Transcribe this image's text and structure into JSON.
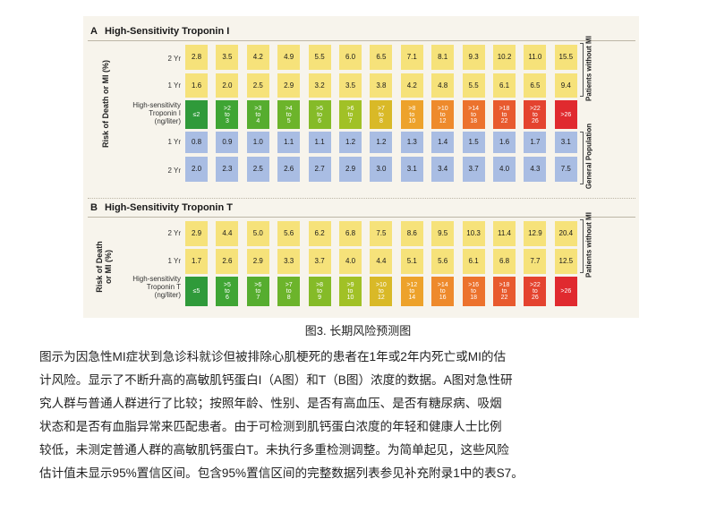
{
  "panel_a": {
    "letter": "A",
    "title": "High-Sensitivity Troponin I",
    "y_axis_label": "Risk of Death or MI (%)",
    "patients_label": "Patients without MI",
    "population_label": "General Population",
    "row_labels": {
      "yr2_top": "2 Yr",
      "yr1_top": "1 Yr",
      "troponin": [
        "High-sensitivity",
        "Troponin I",
        "(ng/liter)"
      ],
      "yr1_bottom": "1 Yr",
      "yr2_bottom": "2 Yr"
    },
    "patients_2yr": [
      "2.8",
      "3.5",
      "4.2",
      "4.9",
      "5.5",
      "6.0",
      "6.5",
      "7.1",
      "8.1",
      "9.3",
      "10.2",
      "11.0",
      "15.5"
    ],
    "patients_1yr": [
      "1.6",
      "2.0",
      "2.5",
      "2.9",
      "3.2",
      "3.5",
      "3.8",
      "4.2",
      "4.8",
      "5.5",
      "6.1",
      "6.5",
      "9.4"
    ],
    "troponin_levels": [
      [
        "≤2"
      ],
      [
        ">2",
        "to",
        "3"
      ],
      [
        ">3",
        "to",
        "4"
      ],
      [
        ">4",
        "to",
        "5"
      ],
      [
        ">5",
        "to",
        "6"
      ],
      [
        ">6",
        "to",
        "7"
      ],
      [
        ">7",
        "to",
        "8"
      ],
      [
        ">8",
        "to",
        "10"
      ],
      [
        ">10",
        "to",
        "12"
      ],
      [
        ">14",
        "to",
        "18"
      ],
      [
        ">18",
        "to",
        "22"
      ],
      [
        ">22",
        "to",
        "26"
      ],
      [
        ">26"
      ]
    ],
    "population_1yr": [
      "0.8",
      "0.9",
      "1.0",
      "1.1",
      "1.1",
      "1.2",
      "1.2",
      "1.3",
      "1.4",
      "1.5",
      "1.6",
      "1.7",
      "3.1"
    ],
    "population_2yr": [
      "2.0",
      "2.3",
      "2.5",
      "2.6",
      "2.7",
      "2.9",
      "3.0",
      "3.1",
      "3.4",
      "3.7",
      "4.0",
      "4.3",
      "7.5"
    ]
  },
  "panel_b": {
    "letter": "B",
    "title": "High-Sensitivity Troponin T",
    "y_axis_label": [
      "Risk of Death",
      "or MI (%)"
    ],
    "patients_label": "Patients without MI",
    "row_labels": {
      "yr2": "2 Yr",
      "yr1": "1 Yr",
      "troponin": [
        "High-sensitivity",
        "Troponin T",
        "(ng/liter)"
      ]
    },
    "patients_2yr": [
      "2.9",
      "4.4",
      "5.0",
      "5.6",
      "6.2",
      "6.8",
      "7.5",
      "8.6",
      "9.5",
      "10.3",
      "11.4",
      "12.9",
      "20.4"
    ],
    "patients_1yr": [
      "1.7",
      "2.6",
      "2.9",
      "3.3",
      "3.7",
      "4.0",
      "4.4",
      "5.1",
      "5.6",
      "6.1",
      "6.8",
      "7.7",
      "12.5"
    ],
    "troponin_levels": [
      [
        "≤5"
      ],
      [
        ">5",
        "to",
        "6"
      ],
      [
        ">6",
        "to",
        "7"
      ],
      [
        ">7",
        "to",
        "8"
      ],
      [
        ">8",
        "to",
        "9"
      ],
      [
        ">9",
        "to",
        "10"
      ],
      [
        ">10",
        "to",
        "12"
      ],
      [
        ">12",
        "to",
        "14"
      ],
      [
        ">14",
        "to",
        "16"
      ],
      [
        ">16",
        "to",
        "18"
      ],
      [
        ">18",
        "to",
        "22"
      ],
      [
        ">22",
        "to",
        "26"
      ],
      [
        ">26"
      ]
    ]
  },
  "colors": {
    "patients_yellow": "#f6e27a",
    "population_blue": "#a9bde3",
    "troponin_scale": [
      "#2f9a3a",
      "#3fa534",
      "#56ad2f",
      "#6cb42b",
      "#85bb28",
      "#a1c126",
      "#d9b927",
      "#eda22b",
      "#ee8a2c",
      "#ec722d",
      "#e85a2e",
      "#e4432f",
      "#e02a2f"
    ],
    "figure_background": "#f7f4ec"
  },
  "caption": "图3. 长期风险预测图",
  "paragraph": [
    "图示为因急性MI症状到急诊科就诊但被排除心肌梗死的患者在1年或2年内死亡或MI的估",
    "计风险。显示了不断升高的高敏肌钙蛋白I（A图）和T（B图）浓度的数据。A图对急性研",
    "究人群与普通人群进行了比较；按照年龄、性别、是否有高血压、是否有糖尿病、吸烟",
    "状态和是否有血脂异常来匹配患者。由于可检测到肌钙蛋白浓度的年轻和健康人士比例",
    "较低，未测定普通人群的高敏肌钙蛋白T。未执行多重检测调整。为简单起见，这些风险",
    "估计值未显示95%置信区间。包含95%置信区间的完整数据列表参见补充附录1中的表S7。"
  ]
}
